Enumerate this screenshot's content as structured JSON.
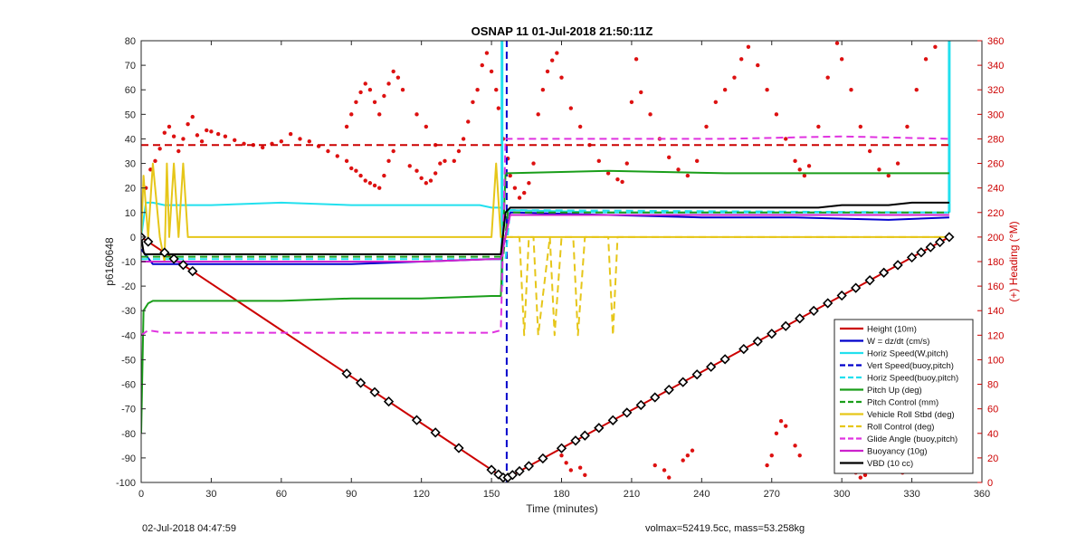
{
  "chart_data": {
    "type": "line",
    "title": "OSNAP 11 01-Jul-2018 21:50:11Z",
    "xlabel": "Time (minutes)",
    "ylabel_left": "p6160648",
    "ylabel_right": "(+) Heading (°M)",
    "xlim": [
      0,
      360
    ],
    "ylim_left": [
      -100,
      80
    ],
    "ylim_right": [
      0,
      360
    ],
    "x_ticks": [
      "0",
      "30",
      "60",
      "90",
      "120",
      "150",
      "180",
      "210",
      "240",
      "270",
      "300",
      "330",
      "360"
    ],
    "y_ticks_left": [
      "80",
      "70",
      "60",
      "50",
      "40",
      "30",
      "20",
      "10",
      "0",
      "-10",
      "-20",
      "-30",
      "-40",
      "-50",
      "-60",
      "-70",
      "-80",
      "-90",
      "-100"
    ],
    "y_ticks_right": [
      "360",
      "340",
      "320",
      "300",
      "280",
      "260",
      "240",
      "220",
      "200",
      "180",
      "160",
      "140",
      "120",
      "100",
      "80",
      "60",
      "40",
      "20",
      "0"
    ],
    "grid": false,
    "legend_position": "bottom-right",
    "legend": [
      {
        "name": "Height (10m)",
        "color": "#cc0000",
        "dash": false
      },
      {
        "name": "W = dz/dt (cm/s)",
        "color": "#0000cc",
        "dash": false
      },
      {
        "name": "Horiz Speed(W,pitch)",
        "color": "#22e0ee",
        "dash": false
      },
      {
        "name": "Vert Speed(buoy,pitch)",
        "color": "#0000cc",
        "dash": true
      },
      {
        "name": "Horiz Speed(buoy,pitch)",
        "color": "#22e0ee",
        "dash": true
      },
      {
        "name": "Pitch Up (deg)",
        "color": "#1a9e1a",
        "dash": false
      },
      {
        "name": "Pitch Control (mm)",
        "color": "#1a9e1a",
        "dash": true
      },
      {
        "name": "Vehicle Roll Stbd (deg)",
        "color": "#e6c619",
        "dash": false
      },
      {
        "name": "Roll Control (deg)",
        "color": "#e6c619",
        "dash": true
      },
      {
        "name": "Glide Angle (buoy,pitch)",
        "color": "#e033e0",
        "dash": true
      },
      {
        "name": "Buoyancy (10g)",
        "color": "#cc22cc",
        "dash": false
      },
      {
        "name": "VBD (10 cc)",
        "color": "#000000",
        "dash": false
      }
    ],
    "series": [
      {
        "key": "height",
        "color": "#cc0000",
        "width": 2,
        "dash": false,
        "x": [
          0,
          155,
          157,
          346
        ],
        "y": [
          0,
          -98,
          -98,
          0
        ]
      },
      {
        "key": "w",
        "color": "#0000cc",
        "width": 2,
        "dash": false,
        "x": [
          0,
          5,
          30,
          60,
          90,
          120,
          150,
          154,
          158,
          160,
          200,
          240,
          280,
          320,
          346
        ],
        "y": [
          -5,
          -11,
          -11,
          -11,
          -11,
          -10,
          -9,
          -9,
          10,
          10,
          9,
          8,
          8,
          7,
          8
        ]
      },
      {
        "key": "horiz_speed_w",
        "color": "#22e0ee",
        "width": 2,
        "dash": false,
        "x": [
          0,
          2,
          5,
          10,
          30,
          60,
          90,
          120,
          145,
          150,
          154,
          156,
          158,
          200,
          300,
          346
        ],
        "y": [
          0,
          14,
          14,
          13,
          13,
          14,
          13,
          13,
          13,
          12,
          12,
          10,
          11,
          10,
          10,
          10
        ]
      },
      {
        "key": "horiz_speed_w_spike",
        "color": "#22e0ee",
        "width": 3,
        "dash": false,
        "x": [
          154.5,
          154.5
        ],
        "y": [
          -20,
          80
        ]
      },
      {
        "key": "horiz_speed_w_spike_end",
        "color": "#22e0ee",
        "width": 3,
        "dash": false,
        "x": [
          346,
          346
        ],
        "y": [
          10,
          80
        ]
      },
      {
        "key": "vert_speed_buoy",
        "color": "#0000cc",
        "width": 2,
        "dash": true,
        "x": [
          156.5,
          156.5
        ],
        "y": [
          -100,
          80
        ]
      },
      {
        "key": "horiz_speed_buoy",
        "color": "#22e0ee",
        "width": 2,
        "dash": true,
        "x": [
          0,
          5,
          150,
          156,
          158,
          346
        ],
        "y": [
          -9,
          -9,
          -9,
          -9,
          11,
          10
        ]
      },
      {
        "key": "pitch_up",
        "color": "#1a9e1a",
        "width": 2,
        "dash": false,
        "x": [
          0,
          1,
          3,
          5,
          30,
          60,
          90,
          120,
          150,
          154,
          156,
          157,
          200,
          250,
          300,
          346
        ],
        "y": [
          -80,
          -30,
          -27,
          -26,
          -26,
          -26,
          -25,
          -25,
          -24,
          -24,
          26,
          26,
          27,
          26,
          26,
          26
        ]
      },
      {
        "key": "pitch_control",
        "color": "#1a9e1a",
        "width": 2,
        "dash": true,
        "x": [
          0,
          155,
          157,
          346
        ],
        "y": [
          -8,
          -8,
          10,
          10
        ]
      },
      {
        "key": "vehicle_roll",
        "color": "#e6c619",
        "width": 2,
        "dash": false,
        "x": [
          0,
          1,
          3,
          5,
          8,
          10,
          11,
          12,
          14,
          16,
          18,
          20,
          22,
          150,
          152,
          154,
          157,
          160,
          346
        ],
        "y": [
          0,
          25,
          0,
          30,
          0,
          -10,
          30,
          0,
          30,
          0,
          30,
          0,
          0,
          0,
          30,
          0,
          0,
          0,
          0
        ]
      },
      {
        "key": "roll_control",
        "color": "#e6c619",
        "width": 2,
        "dash": true,
        "x": [
          156,
          162,
          164,
          166,
          168,
          170,
          175,
          177,
          180,
          185,
          187,
          190,
          200,
          202,
          204,
          346
        ],
        "y": [
          0,
          0,
          -40,
          0,
          0,
          -40,
          0,
          -40,
          0,
          0,
          -40,
          0,
          0,
          -40,
          0,
          0
        ]
      },
      {
        "key": "glide_angle",
        "color": "#e033e0",
        "width": 2,
        "dash": true,
        "x": [
          0,
          3,
          10,
          30,
          60,
          90,
          120,
          150,
          154,
          156,
          160,
          200,
          250,
          300,
          346
        ],
        "y": [
          -40,
          -38,
          -39,
          -39,
          -39,
          -39,
          -39,
          -39,
          -38,
          40,
          40,
          40,
          40,
          41,
          40
        ]
      },
      {
        "key": "buoyancy",
        "color": "#cc22cc",
        "width": 2,
        "dash": false,
        "x": [
          0,
          5,
          30,
          60,
          90,
          120,
          150,
          154,
          158,
          160,
          200,
          250,
          300,
          346
        ],
        "y": [
          -10,
          -10,
          -10,
          -10,
          -10,
          -10,
          -9,
          -9,
          9,
          9,
          9,
          9,
          9,
          9
        ]
      },
      {
        "key": "vbd",
        "color": "#000000",
        "width": 2,
        "dash": false,
        "x": [
          0,
          1,
          1.5,
          154,
          156,
          158,
          160,
          230,
          260,
          290,
          300,
          320,
          330,
          340,
          346
        ],
        "y": [
          0,
          -6,
          -7,
          -7,
          10,
          12,
          12,
          12,
          12,
          12,
          13,
          13,
          14,
          14,
          14
        ]
      },
      {
        "key": "heading_ref",
        "color": "#cc0000",
        "width": 2,
        "dash": true,
        "axis": "right",
        "x": [
          0,
          346
        ],
        "y": [
          275,
          275
        ]
      }
    ],
    "heading_points": [
      [
        2,
        240
      ],
      [
        4,
        255
      ],
      [
        6,
        262
      ],
      [
        8,
        272
      ],
      [
        10,
        285
      ],
      [
        12,
        290
      ],
      [
        14,
        282
      ],
      [
        16,
        270
      ],
      [
        18,
        280
      ],
      [
        20,
        292
      ],
      [
        22,
        298
      ],
      [
        24,
        283
      ],
      [
        26,
        278
      ],
      [
        28,
        287
      ],
      [
        30,
        286
      ],
      [
        33,
        284
      ],
      [
        36,
        282
      ],
      [
        40,
        279
      ],
      [
        44,
        276
      ],
      [
        48,
        275
      ],
      [
        52,
        273
      ],
      [
        56,
        276
      ],
      [
        60,
        278
      ],
      [
        64,
        284
      ],
      [
        68,
        280
      ],
      [
        72,
        278
      ],
      [
        76,
        274
      ],
      [
        80,
        270
      ],
      [
        84,
        266
      ],
      [
        88,
        262
      ],
      [
        90,
        256
      ],
      [
        92,
        254
      ],
      [
        94,
        250
      ],
      [
        96,
        246
      ],
      [
        98,
        244
      ],
      [
        100,
        242
      ],
      [
        102,
        240
      ],
      [
        104,
        250
      ],
      [
        106,
        262
      ],
      [
        108,
        270
      ],
      [
        88,
        290
      ],
      [
        90,
        300
      ],
      [
        92,
        310
      ],
      [
        94,
        318
      ],
      [
        96,
        325
      ],
      [
        98,
        320
      ],
      [
        100,
        310
      ],
      [
        102,
        300
      ],
      [
        104,
        315
      ],
      [
        106,
        325
      ],
      [
        108,
        335
      ],
      [
        110,
        330
      ],
      [
        112,
        320
      ],
      [
        115,
        258
      ],
      [
        118,
        254
      ],
      [
        120,
        248
      ],
      [
        122,
        244
      ],
      [
        124,
        246
      ],
      [
        126,
        252
      ],
      [
        128,
        260
      ],
      [
        118,
        300
      ],
      [
        122,
        290
      ],
      [
        126,
        275
      ],
      [
        130,
        262
      ],
      [
        134,
        262
      ],
      [
        136,
        270
      ],
      [
        138,
        280
      ],
      [
        140,
        294
      ],
      [
        142,
        310
      ],
      [
        144,
        320
      ],
      [
        146,
        340
      ],
      [
        148,
        350
      ],
      [
        150,
        335
      ],
      [
        152,
        320
      ],
      [
        153,
        305
      ],
      [
        155,
        280
      ],
      [
        157,
        264
      ],
      [
        158,
        250
      ],
      [
        160,
        240
      ],
      [
        162,
        232
      ],
      [
        164,
        236
      ],
      [
        166,
        244
      ],
      [
        168,
        260
      ],
      [
        170,
        300
      ],
      [
        172,
        320
      ],
      [
        174,
        335
      ],
      [
        176,
        344
      ],
      [
        178,
        350
      ],
      [
        180,
        330
      ],
      [
        184,
        305
      ],
      [
        188,
        290
      ],
      [
        192,
        275
      ],
      [
        196,
        262
      ],
      [
        200,
        252
      ],
      [
        204,
        247
      ],
      [
        206,
        245
      ],
      [
        208,
        260
      ],
      [
        210,
        310
      ],
      [
        212,
        345
      ],
      [
        214,
        318
      ],
      [
        218,
        300
      ],
      [
        222,
        280
      ],
      [
        226,
        265
      ],
      [
        230,
        255
      ],
      [
        234,
        250
      ],
      [
        238,
        262
      ],
      [
        242,
        290
      ],
      [
        246,
        310
      ],
      [
        250,
        320
      ],
      [
        254,
        330
      ],
      [
        257,
        345
      ],
      [
        260,
        355
      ],
      [
        264,
        340
      ],
      [
        268,
        320
      ],
      [
        272,
        300
      ],
      [
        276,
        280
      ],
      [
        280,
        262
      ],
      [
        282,
        255
      ],
      [
        284,
        250
      ],
      [
        286,
        258
      ],
      [
        290,
        290
      ],
      [
        294,
        330
      ],
      [
        298,
        358
      ],
      [
        300,
        345
      ],
      [
        304,
        320
      ],
      [
        308,
        290
      ],
      [
        312,
        270
      ],
      [
        316,
        255
      ],
      [
        320,
        250
      ],
      [
        324,
        260
      ],
      [
        328,
        290
      ],
      [
        332,
        320
      ],
      [
        336,
        345
      ],
      [
        340,
        355
      ],
      [
        180,
        22
      ],
      [
        182,
        16
      ],
      [
        184,
        10
      ],
      [
        188,
        12
      ],
      [
        190,
        6
      ],
      [
        220,
        14
      ],
      [
        224,
        10
      ],
      [
        226,
        4
      ],
      [
        232,
        18
      ],
      [
        234,
        22
      ],
      [
        236,
        26
      ],
      [
        268,
        14
      ],
      [
        270,
        22
      ],
      [
        272,
        40
      ],
      [
        274,
        50
      ],
      [
        276,
        46
      ],
      [
        280,
        30
      ],
      [
        282,
        22
      ],
      [
        300,
        28
      ],
      [
        302,
        20
      ],
      [
        304,
        12
      ],
      [
        306,
        8
      ],
      [
        308,
        4
      ],
      [
        310,
        6
      ],
      [
        312,
        14
      ],
      [
        314,
        18
      ],
      [
        316,
        26
      ],
      [
        318,
        34
      ],
      [
        320,
        40
      ],
      [
        322,
        20
      ],
      [
        324,
        10
      ],
      [
        326,
        8
      ]
    ],
    "height_markers_x": [
      0,
      3,
      10,
      14,
      18,
      22,
      88,
      94,
      100,
      106,
      118,
      126,
      136,
      150,
      153,
      155,
      157,
      159,
      162,
      166,
      172,
      180,
      186,
      190,
      196,
      202,
      208,
      214,
      220,
      226,
      232,
      238,
      244,
      250,
      258,
      264,
      270,
      276,
      282,
      288,
      294,
      300,
      306,
      312,
      318,
      324,
      330,
      334,
      338,
      342,
      346
    ]
  },
  "footer": {
    "timestamp": "02-Jul-2018 04:47:59",
    "summary": "volmax=52419.5cc, mass=53.258kg"
  }
}
